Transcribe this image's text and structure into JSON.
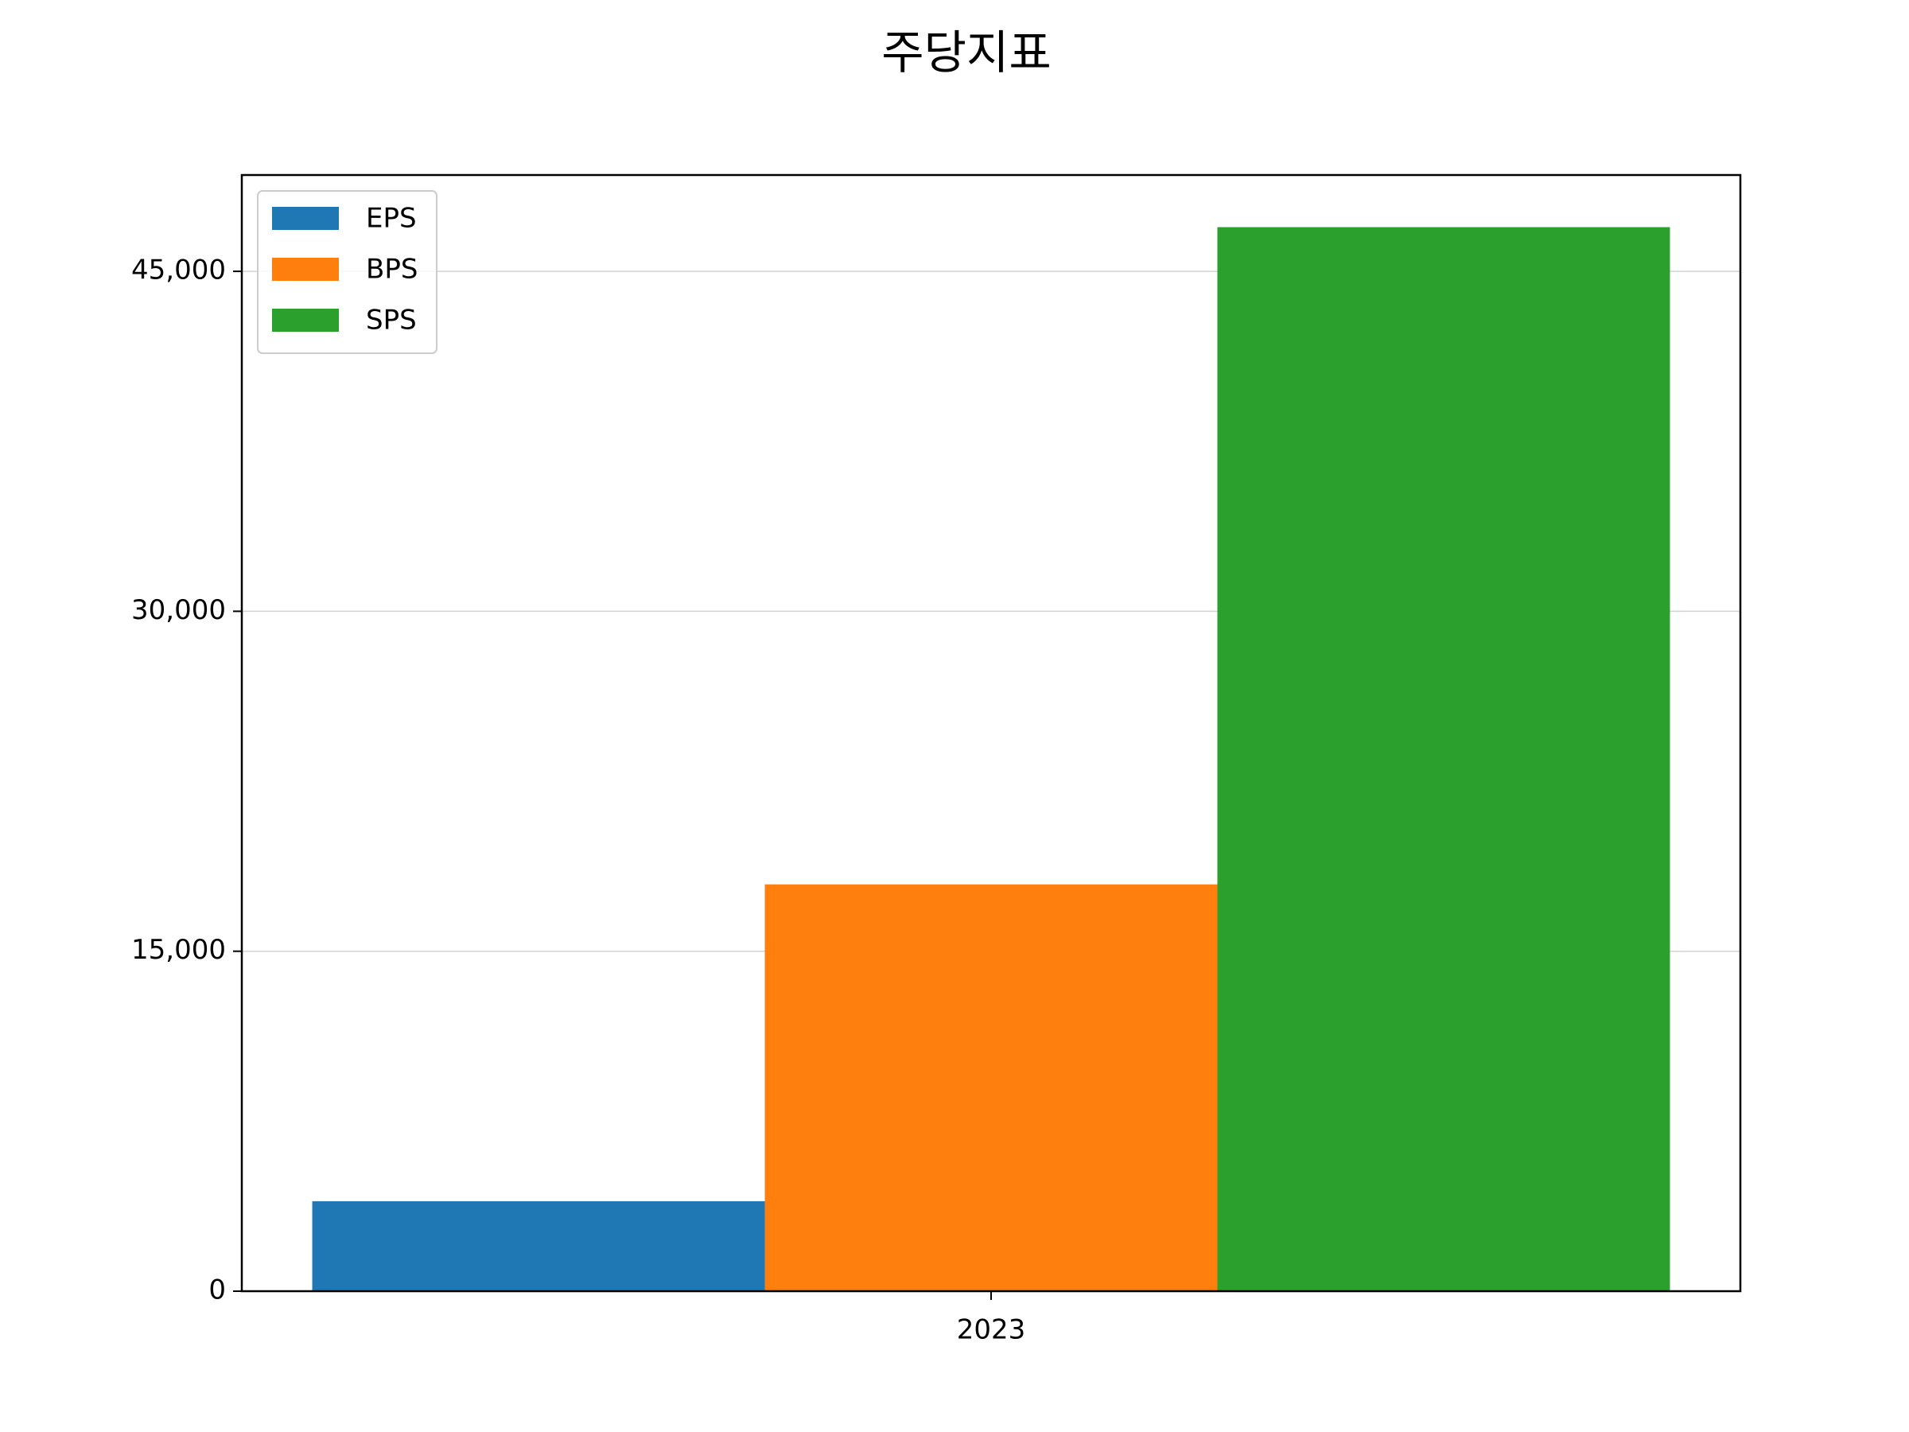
{
  "chart_data": {
    "type": "bar",
    "title": "주당지표",
    "categories": [
      "2023"
    ],
    "series": [
      {
        "name": "EPS",
        "color": "#1f77b4",
        "values": [
          3970
        ]
      },
      {
        "name": "BPS",
        "color": "#ff7f0e",
        "values": [
          17950
        ]
      },
      {
        "name": "SPS",
        "color": "#2ca02c",
        "values": [
          46950
        ]
      }
    ],
    "ylim": [
      0,
      49250
    ],
    "yticks": [
      0,
      {
        "value": 15000,
        "label": "15,000"
      },
      {
        "value": 30000,
        "label": "30,000"
      },
      {
        "value": 45000,
        "label": "45,000"
      }
    ],
    "grid": true,
    "legend": "upper left"
  }
}
